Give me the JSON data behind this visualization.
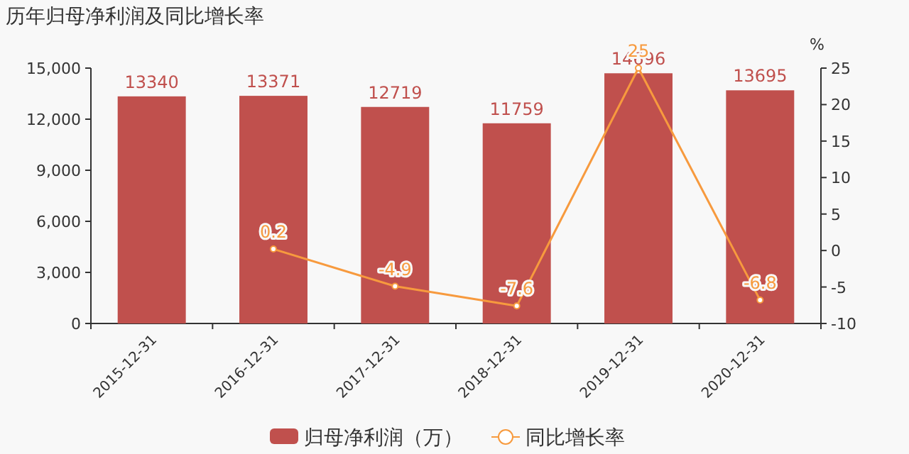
{
  "chart_data": {
    "type": "bar",
    "title": "历年归母净利润及同比增长率",
    "y2label": "%",
    "categories": [
      "2015-12-31",
      "2016-12-31",
      "2017-12-31",
      "2018-12-31",
      "2019-12-31",
      "2020-12-31"
    ],
    "series": [
      {
        "name": "归母净利润（万）",
        "color": "#c0504d",
        "values": [
          13340,
          13371,
          12719,
          11759,
          14696,
          13695
        ]
      },
      {
        "name": "同比增长率",
        "type": "line",
        "axis": "y2",
        "color": "#f79a3e",
        "marker": "circle",
        "values": [
          null,
          0.2,
          -4.9,
          -7.6,
          25,
          -6.8
        ]
      }
    ],
    "ylim": [
      0,
      15000
    ],
    "yticks": [
      {
        "value": 0,
        "label": "0"
      },
      {
        "value": 3000,
        "label": "3,000"
      },
      {
        "value": 6000,
        "label": "6,000"
      },
      {
        "value": 9000,
        "label": "9,000"
      },
      {
        "value": 12000,
        "label": "12,000"
      },
      {
        "value": 15000,
        "label": "15,000"
      }
    ],
    "y2lim": [
      -10,
      25
    ],
    "y2ticks": [
      -10,
      -5,
      0,
      5,
      10,
      15,
      20,
      25
    ],
    "data_labels": true,
    "grid": false,
    "legend": "bottom"
  }
}
